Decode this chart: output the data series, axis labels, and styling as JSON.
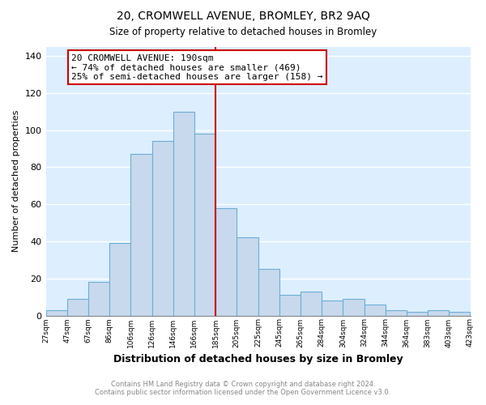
{
  "title1": "20, CROMWELL AVENUE, BROMLEY, BR2 9AQ",
  "title2": "Size of property relative to detached houses in Bromley",
  "xlabel": "Distribution of detached houses by size in Bromley",
  "ylabel": "Number of detached properties",
  "bar_labels": [
    "27sqm",
    "47sqm",
    "67sqm",
    "86sqm",
    "106sqm",
    "126sqm",
    "146sqm",
    "166sqm",
    "185sqm",
    "205sqm",
    "225sqm",
    "245sqm",
    "265sqm",
    "284sqm",
    "304sqm",
    "324sqm",
    "344sqm",
    "364sqm",
    "383sqm",
    "403sqm",
    "423sqm"
  ],
  "bar_values": [
    3,
    9,
    18,
    39,
    87,
    94,
    110,
    98,
    58,
    42,
    25,
    11,
    13,
    8,
    9,
    6,
    3,
    2,
    3,
    2
  ],
  "bar_color": "#c8d9ed",
  "bar_edge_color": "#6baed6",
  "vline_x": 8,
  "vline_color": "#cc0000",
  "annotation_title": "20 CROMWELL AVENUE: 190sqm",
  "annotation_line1": "← 74% of detached houses are smaller (469)",
  "annotation_line2": "25% of semi-detached houses are larger (158) →",
  "annotation_box_color": "#ffffff",
  "annotation_box_edge": "#cc0000",
  "ylim": [
    0,
    145
  ],
  "yticks": [
    0,
    20,
    40,
    60,
    80,
    100,
    120,
    140
  ],
  "footer1": "Contains HM Land Registry data © Crown copyright and database right 2024.",
  "footer2": "Contains public sector information licensed under the Open Government Licence v3.0.",
  "fig_bg_color": "#ffffff",
  "plot_bg_color": "#ddeeff"
}
